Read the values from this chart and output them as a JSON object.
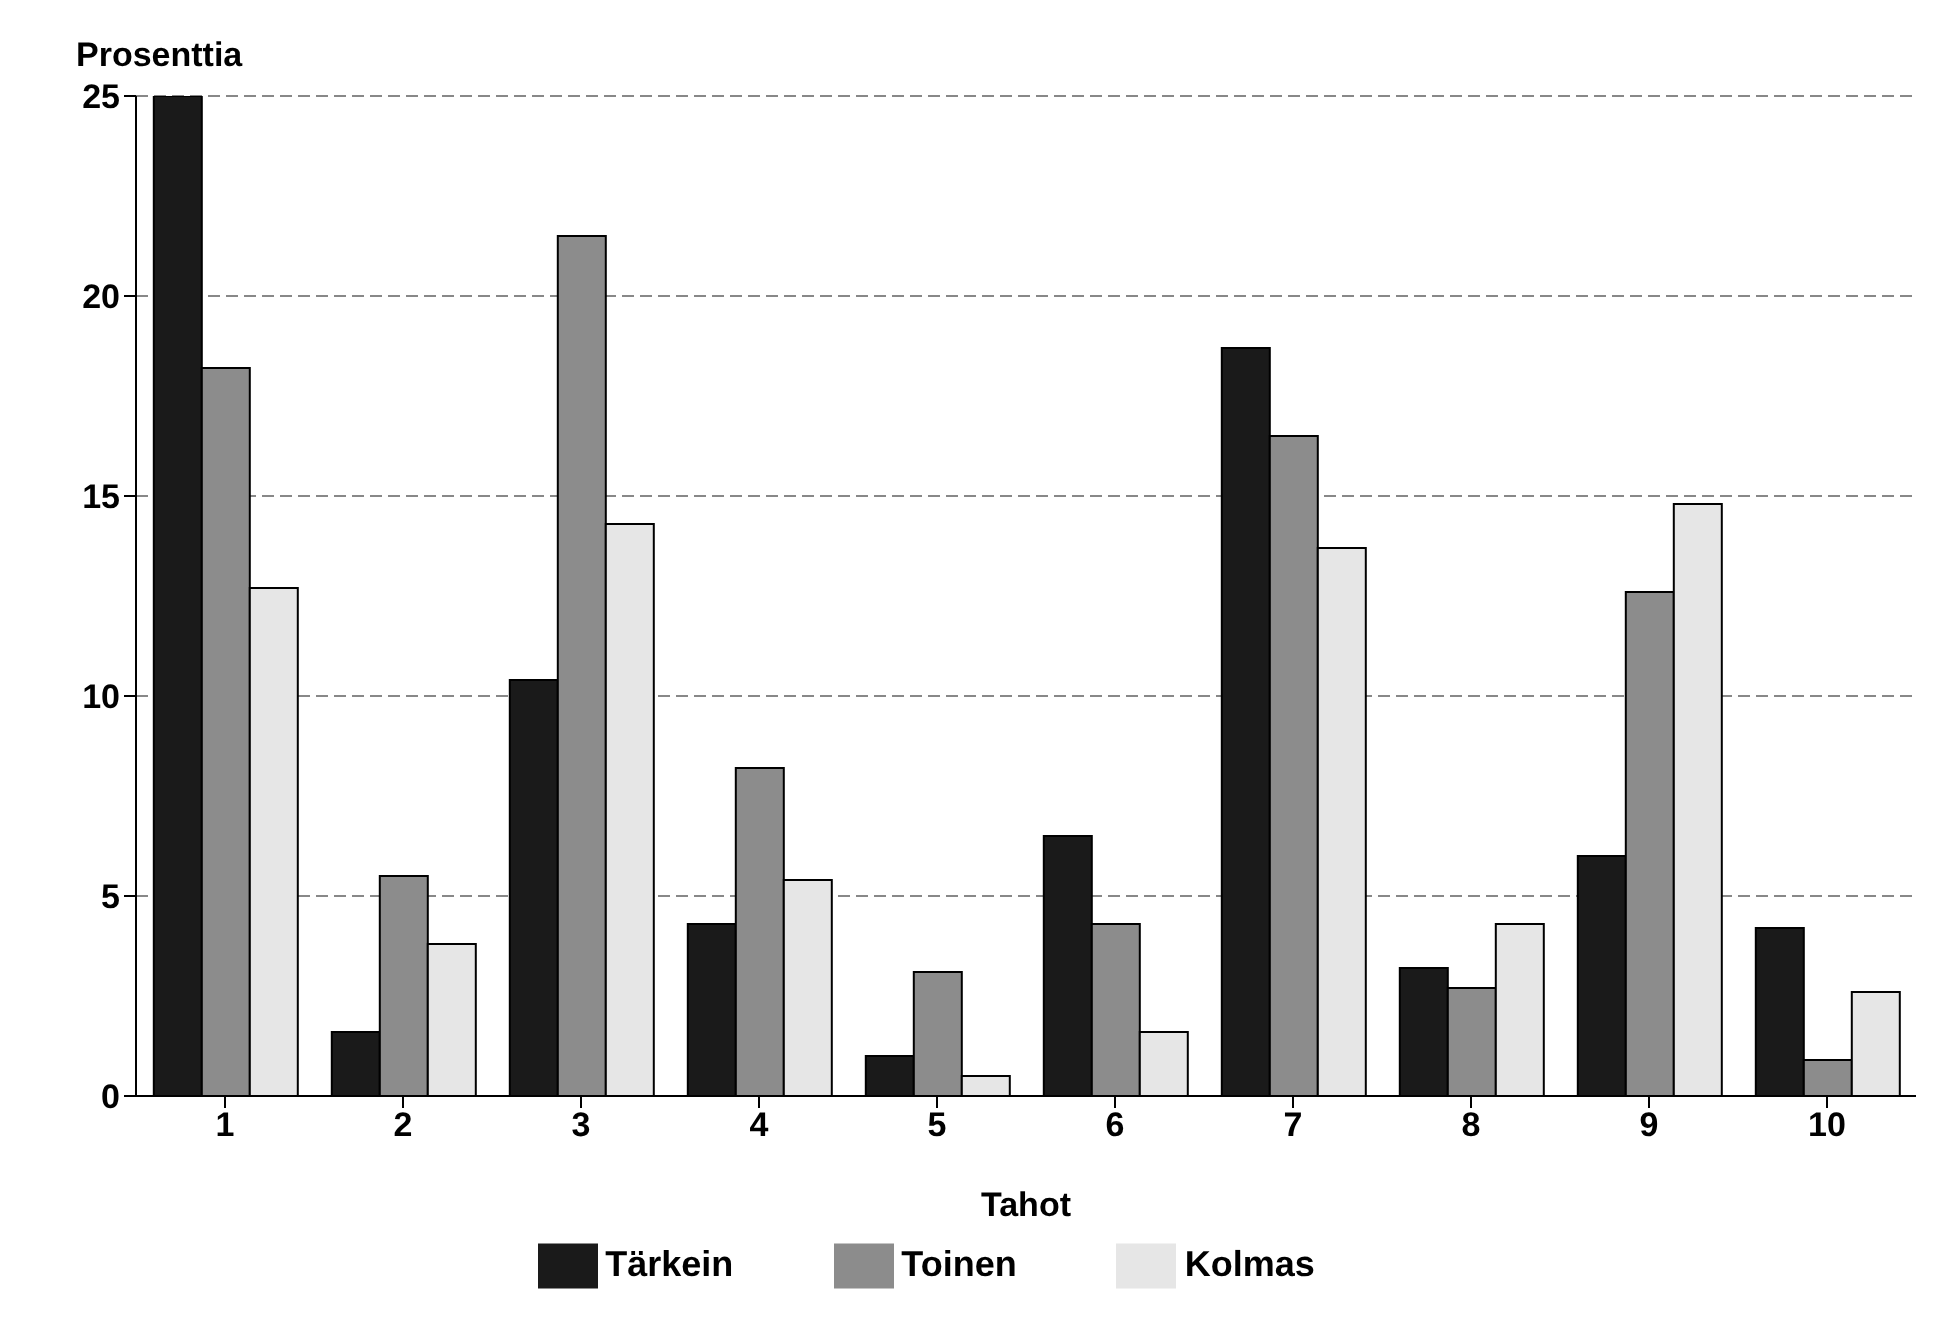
{
  "chart_data": {
    "type": "bar",
    "xlabel": "Tahot",
    "ylabel": "Prosenttia",
    "categories": [
      "1",
      "2",
      "3",
      "4",
      "5",
      "6",
      "7",
      "8",
      "9",
      "10"
    ],
    "series": [
      {
        "name": "Tärkein",
        "color": "#1a1a1a",
        "values": [
          25,
          1.6,
          10.4,
          4.3,
          1.0,
          6.5,
          18.7,
          3.2,
          6.0,
          4.2
        ]
      },
      {
        "name": "Toinen",
        "color": "#8c8c8c",
        "values": [
          18.2,
          5.5,
          21.5,
          8.2,
          3.1,
          4.3,
          16.5,
          2.7,
          12.6,
          0.9
        ]
      },
      {
        "name": "Kolmas",
        "color": "#e6e6e6",
        "values": [
          12.7,
          3.8,
          14.3,
          5.4,
          0.5,
          1.6,
          13.7,
          4.3,
          14.8,
          2.6
        ]
      }
    ],
    "ylim": [
      0,
      25
    ],
    "yticks": [
      0,
      5,
      10,
      15,
      20,
      25
    ],
    "grid": "y",
    "legend": "bottom"
  }
}
